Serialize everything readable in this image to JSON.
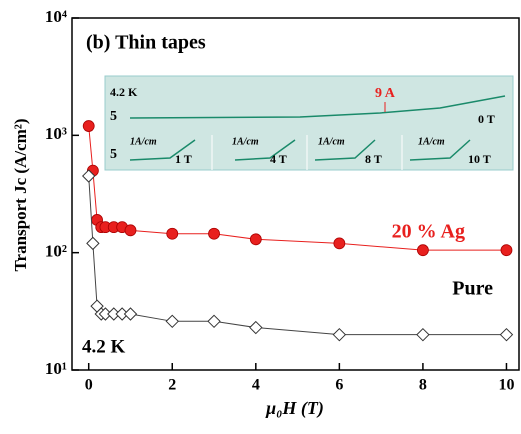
{
  "chart_data": {
    "type": "line",
    "title": "(b) Thin tapes",
    "x_label": "μ₀H (T)",
    "y_label": "Transport Jc (A/cm²)",
    "log_y": true,
    "xlim": [
      -0.4,
      10.3
    ],
    "xticks": [
      0,
      2,
      4,
      6,
      8,
      10
    ],
    "ylim": [
      10,
      10000
    ],
    "yticks": [
      {
        "value": 10,
        "label": "10¹"
      },
      {
        "value": 100,
        "label": "10²"
      },
      {
        "value": 1000,
        "label": "10³"
      },
      {
        "value": 10000,
        "label": "10⁴"
      }
    ],
    "series": [
      {
        "name": "20 % Ag",
        "color": "#e8201e",
        "marker": "circle",
        "x": [
          0,
          0.1,
          0.2,
          0.3,
          0.4,
          0.6,
          0.8,
          1,
          2,
          3,
          4,
          6,
          8,
          10
        ],
        "values": [
          1200,
          500,
          190,
          165,
          165,
          165,
          165,
          155,
          145,
          145,
          130,
          120,
          105,
          105
        ]
      },
      {
        "name": "Pure",
        "color": "#000000",
        "marker": "diamond",
        "x": [
          0,
          0.1,
          0.2,
          0.3,
          0.4,
          0.6,
          0.8,
          1,
          2,
          3,
          4,
          6,
          8,
          10
        ],
        "values": [
          450,
          120,
          35,
          30,
          30,
          30,
          30,
          30,
          26,
          26,
          23,
          20,
          20,
          20
        ]
      }
    ],
    "annotation": "4.2 K",
    "inset": {
      "temperature": "4.2 K",
      "current": "9 A",
      "scale": "1A/cm",
      "fields": [
        "0 T",
        "1 T",
        "4 T",
        "8 T",
        "10 T"
      ],
      "axis_mark": "5"
    }
  }
}
